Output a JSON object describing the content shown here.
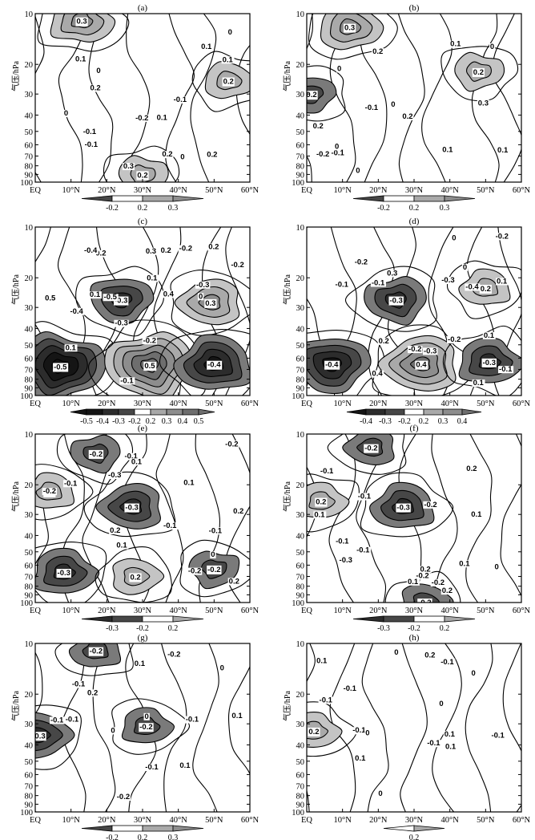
{
  "figure": {
    "ylabel": "气压/hPa",
    "x_ticks": [
      "EQ",
      "10°N",
      "20°N",
      "30°N",
      "40°N",
      "50°N",
      "60°N"
    ],
    "y_ticks": [
      "10",
      "20",
      "30",
      "40",
      "50",
      "60",
      "70",
      "80",
      "90",
      "100"
    ]
  },
  "chart_data": [
    {
      "type": "heatmap",
      "title": "(a)",
      "x_ticks": [
        "EQ",
        "10°N",
        "20°N",
        "30°N",
        "40°N",
        "50°N",
        "60°N"
      ],
      "y_ticks": [
        "10",
        "20",
        "30",
        "40",
        "50",
        "60",
        "70",
        "80",
        "90",
        "100"
      ],
      "ylabel": "气压/hPa",
      "xlim": [
        0,
        60
      ],
      "ylim": [
        100,
        10
      ],
      "y_scale": "log",
      "shading_levels": [
        -0.2,
        0.2,
        0.3
      ],
      "colorbar_labels": [
        "-0.2",
        "0.2",
        "0.3"
      ],
      "features": [
        {
          "lat": 13,
          "p": 11,
          "value": 0.3,
          "label": "0.3"
        },
        {
          "lat": 54,
          "p": 25,
          "value": 0.2,
          "label": "0.2"
        },
        {
          "lat": 30,
          "p": 90,
          "value": 0.2,
          "label": "0.2"
        }
      ],
      "contour_labels": [
        "0.3",
        "-0.2",
        "0.2",
        "-0.1",
        "0.1",
        "0",
        "0.2",
        "-0.1",
        "0",
        "0.1",
        "0",
        "-0.1",
        "0",
        "0.1",
        "0.2",
        "0.1"
      ]
    },
    {
      "type": "heatmap",
      "title": "(b)",
      "x_ticks": [
        "EQ",
        "10°N",
        "20°N",
        "30°N",
        "40°N",
        "50°N",
        "60°N"
      ],
      "y_ticks": [
        "10",
        "20",
        "30",
        "40",
        "50",
        "60",
        "70",
        "80",
        "90",
        "100"
      ],
      "ylabel": "气压/hPa",
      "xlim": [
        0,
        60
      ],
      "ylim": [
        100,
        10
      ],
      "y_scale": "log",
      "shading_levels": [
        -0.2,
        0.2,
        0.3
      ],
      "colorbar_labels": [
        "-0.2",
        "0.2",
        "0.3"
      ],
      "features": [
        {
          "lat": 12,
          "p": 12,
          "value": 0.3,
          "label": "0.3"
        },
        {
          "lat": 48,
          "p": 22,
          "value": 0.2,
          "label": "0.2"
        },
        {
          "lat": 1,
          "p": 30,
          "value": -0.2,
          "label": "-0.2"
        }
      ],
      "contour_labels": [
        "0.3",
        "0.2",
        "0.1",
        "0",
        "-0.1",
        "0.2",
        "-0.2",
        "0",
        "0",
        "-0.1",
        "0.1",
        "-0.1",
        "0.1",
        "0",
        "0.2",
        "0"
      ]
    },
    {
      "type": "heatmap",
      "title": "(c)",
      "x_ticks": [
        "EQ",
        "10°N",
        "20°N",
        "30°N",
        "40°N",
        "50°N",
        "60°N"
      ],
      "y_ticks": [
        "10",
        "20",
        "30",
        "40",
        "50",
        "60",
        "70",
        "80",
        "90",
        "100"
      ],
      "ylabel": "气压/hPa",
      "xlim": [
        0,
        60
      ],
      "ylim": [
        100,
        10
      ],
      "y_scale": "log",
      "shading_levels": [
        -0.5,
        -0.4,
        -0.3,
        -0.2,
        0.2,
        0.3,
        0.4,
        0.5
      ],
      "colorbar_labels": [
        "-0.5",
        "-0.4",
        "-0.3",
        "-0.2",
        "0.2",
        "0.3",
        "0.4",
        "0.5"
      ],
      "features": [
        {
          "lat": 7,
          "p": 67,
          "value": -0.5,
          "label": "-0.5"
        },
        {
          "lat": 24,
          "p": 27,
          "value": -0.3,
          "label": "-0.3"
        },
        {
          "lat": 32,
          "p": 66,
          "value": 0.5,
          "label": "0.5"
        },
        {
          "lat": 49,
          "p": 28,
          "value": 0.3,
          "label": "0.3"
        },
        {
          "lat": 50,
          "p": 65,
          "value": -0.4,
          "label": "-0.4"
        }
      ],
      "contour_labels": [
        "-0.2",
        "0.1",
        "0",
        "0.1",
        "0.2",
        "-0.2",
        "-0.3",
        "0.3",
        "-0.2",
        "-0.3",
        "-0.4",
        "-0.5",
        "0.4",
        "0.5",
        "-0.4",
        "0.2",
        "0.1",
        "-0.2",
        "-0.1"
      ]
    },
    {
      "type": "heatmap",
      "title": "(d)",
      "x_ticks": [
        "EQ",
        "10°N",
        "20°N",
        "30°N",
        "40°N",
        "50°N",
        "60°N"
      ],
      "y_ticks": [
        "10",
        "20",
        "30",
        "40",
        "50",
        "60",
        "70",
        "80",
        "90",
        "100"
      ],
      "ylabel": "气压/hPa",
      "xlim": [
        0,
        60
      ],
      "ylim": [
        100,
        10
      ],
      "y_scale": "log",
      "shading_levels": [
        -0.4,
        -0.3,
        -0.2,
        0.2,
        0.3,
        0.4
      ],
      "colorbar_labels": [
        "-0.4",
        "-0.3",
        "-0.2",
        "0.2",
        "0.3",
        "0.4"
      ],
      "features": [
        {
          "lat": 7,
          "p": 65,
          "value": -0.4,
          "label": "-0.4"
        },
        {
          "lat": 25,
          "p": 27,
          "value": -0.3,
          "label": "-0.3"
        },
        {
          "lat": 32,
          "p": 65,
          "value": 0.4,
          "label": "0.4"
        },
        {
          "lat": 50,
          "p": 23,
          "value": 0.2,
          "label": "0.2"
        },
        {
          "lat": 51,
          "p": 63,
          "value": -0.3,
          "label": "-0.3"
        }
      ],
      "contour_labels": [
        "-0.2",
        "0.1",
        "0.1",
        "0",
        "-0.1",
        "-0.2",
        "-0.3",
        "-0.1",
        "-0.2",
        "-0.3",
        "-0.4",
        "0.3",
        "0.4",
        "-0.2",
        "-0.1",
        "0.1",
        "0",
        "0.2"
      ]
    },
    {
      "type": "heatmap",
      "title": "(e)",
      "x_ticks": [
        "EQ",
        "10°N",
        "20°N",
        "30°N",
        "40°N",
        "50°N",
        "60°N"
      ],
      "y_ticks": [
        "10",
        "20",
        "30",
        "40",
        "50",
        "60",
        "70",
        "80",
        "90",
        "100"
      ],
      "ylabel": "气压/hPa",
      "xlim": [
        0,
        60
      ],
      "ylim": [
        100,
        10
      ],
      "y_scale": "log",
      "shading_levels": [
        -0.3,
        -0.2,
        0.2
      ],
      "colorbar_labels": [
        "-0.3",
        "-0.2",
        "0.2"
      ],
      "features": [
        {
          "lat": 17,
          "p": 13,
          "value": -0.2,
          "label": "-0.2"
        },
        {
          "lat": 27,
          "p": 27,
          "value": -0.3,
          "label": "-0.3"
        },
        {
          "lat": 4,
          "p": 22,
          "value": 0.2,
          "label": "0.2"
        },
        {
          "lat": 8,
          "p": 66,
          "value": -0.3,
          "label": "-0.3"
        },
        {
          "lat": 28,
          "p": 70,
          "value": 0.2,
          "label": "0.2"
        },
        {
          "lat": 50,
          "p": 63,
          "value": -0.2,
          "label": "-0.2"
        }
      ],
      "contour_labels": [
        "-0.1",
        "-0.2",
        "0.2",
        "0",
        "-0.1",
        "-0.2",
        "-0.3",
        "0.1",
        "0.1",
        "-0.2",
        "0.2",
        "-0.1",
        "0.2",
        "-0.1",
        "0.1"
      ]
    },
    {
      "type": "heatmap",
      "title": "(f)",
      "x_ticks": [
        "EQ",
        "10°N",
        "20°N",
        "30°N",
        "40°N",
        "50°N",
        "60°N"
      ],
      "y_ticks": [
        "10",
        "20",
        "30",
        "40",
        "50",
        "60",
        "70",
        "80",
        "90",
        "100"
      ],
      "ylabel": "气压/hPa",
      "xlim": [
        0,
        60
      ],
      "ylim": [
        100,
        10
      ],
      "y_scale": "log",
      "shading_levels": [
        -0.3,
        -0.2,
        0.2
      ],
      "colorbar_labels": [
        "-0.3",
        "-0.2",
        "0.2"
      ],
      "features": [
        {
          "lat": 18,
          "p": 12,
          "value": -0.2,
          "label": "-0.2"
        },
        {
          "lat": 27,
          "p": 27,
          "value": -0.3,
          "label": "-0.3"
        },
        {
          "lat": 4,
          "p": 25,
          "value": 0.2,
          "label": "0.2"
        },
        {
          "lat": 33,
          "p": 99,
          "value": -0.2,
          "label": "-0.2"
        }
      ],
      "contour_labels": [
        "0.2",
        "-0.2",
        "-0.1",
        "0.1",
        "-0.3",
        "-0.2",
        "-0.1",
        "0.1",
        "-0.1",
        "-0.1",
        "0",
        "0.1",
        "0.2",
        "0.2",
        "-0.2",
        "0.1"
      ]
    },
    {
      "type": "heatmap",
      "title": "(g)",
      "x_ticks": [
        "EQ",
        "10°N",
        "20°N",
        "30°N",
        "40°N",
        "50°N",
        "60°N"
      ],
      "y_ticks": [
        "10",
        "20",
        "30",
        "40",
        "50",
        "60",
        "70",
        "80",
        "90",
        "100"
      ],
      "ylabel": "气压/hPa",
      "xlim": [
        0,
        60
      ],
      "ylim": [
        100,
        10
      ],
      "y_scale": "log",
      "shading_levels": [
        -0.2,
        0.2,
        0.3
      ],
      "colorbar_labels": [
        "-0.2",
        "0.2",
        "0.3"
      ],
      "features": [
        {
          "lat": 17,
          "p": 11,
          "value": -0.2,
          "label": "-0.2"
        },
        {
          "lat": 31,
          "p": 31,
          "value": -0.2,
          "label": "-0.2"
        },
        {
          "lat": 1,
          "p": 35,
          "value": -0.3,
          "label": "-0.3"
        }
      ],
      "contour_labels": [
        "0.1",
        "-0.2",
        "-0.1",
        "-0.1",
        "-0.2",
        "-0.1",
        "0",
        "0.2",
        "-0.1",
        "0",
        "0.1",
        "-0.1",
        "0",
        "0.1"
      ]
    },
    {
      "type": "heatmap",
      "title": "(h)",
      "x_ticks": [
        "EQ",
        "10°N",
        "20°N",
        "30°N",
        "40°N",
        "50°N",
        "60°N"
      ],
      "y_ticks": [
        "10",
        "20",
        "30",
        "40",
        "50",
        "60",
        "70",
        "80",
        "90",
        "100"
      ],
      "ylabel": "气压/hPa",
      "xlim": [
        0,
        60
      ],
      "ylim": [
        100,
        10
      ],
      "y_scale": "log",
      "shading_levels": [
        0.2
      ],
      "colorbar_labels": [
        "0.2"
      ],
      "features": [
        {
          "lat": 2,
          "p": 33,
          "value": 0.2,
          "label": "0.2"
        }
      ],
      "contour_labels": [
        "0",
        "-0.1",
        "0.1",
        "0",
        "-0.1",
        "0.2",
        "0.1",
        "-0.1",
        "0",
        "0",
        "-0.1",
        "-0.1",
        "0.1",
        "0",
        "-0.1",
        "0.1"
      ]
    }
  ]
}
